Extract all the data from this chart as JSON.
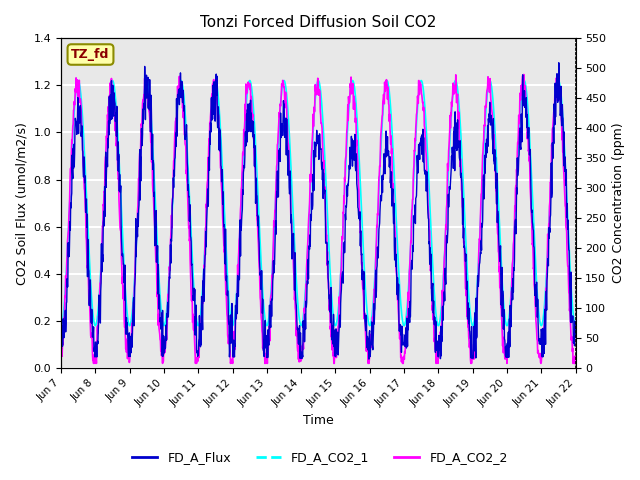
{
  "title": "Tonzi Forced Diffusion Soil CO2",
  "xlabel": "Time",
  "ylabel_left": "CO2 Soil Flux (umol/m2/s)",
  "ylabel_right": "CO2 Concentration (ppm)",
  "ylim_left": [
    0.0,
    1.4
  ],
  "ylim_right": [
    0,
    550
  ],
  "yticks_left": [
    0.0,
    0.2,
    0.4,
    0.6,
    0.8,
    1.0,
    1.2,
    1.4
  ],
  "yticks_right": [
    0,
    50,
    100,
    150,
    200,
    250,
    300,
    350,
    400,
    450,
    500,
    550
  ],
  "xtick_labels": [
    "Jun 7",
    "Jun 8",
    "Jun 9",
    "Jun 10",
    "Jun 11",
    "Jun 12",
    "Jun 13",
    "Jun 14",
    "Jun 15",
    "Jun 16",
    "Jun 17",
    "Jun 18",
    "Jun 19",
    "Jun 20",
    "Jun 21",
    "Jun 22"
  ],
  "n_days": 15,
  "flux_color": "#0000CD",
  "co2_1_color": "#00FFFF",
  "co2_2_color": "#FF00FF",
  "legend_labels": [
    "FD_A_Flux",
    "FD_A_CO2_1",
    "FD_A_CO2_2"
  ],
  "tag_text": "TZ_fd",
  "tag_bg": "#FFFFAA",
  "tag_border": "#8B8B00",
  "bg_color": "#E8E8E8",
  "grid_color": "#FFFFFF",
  "seed": 42
}
